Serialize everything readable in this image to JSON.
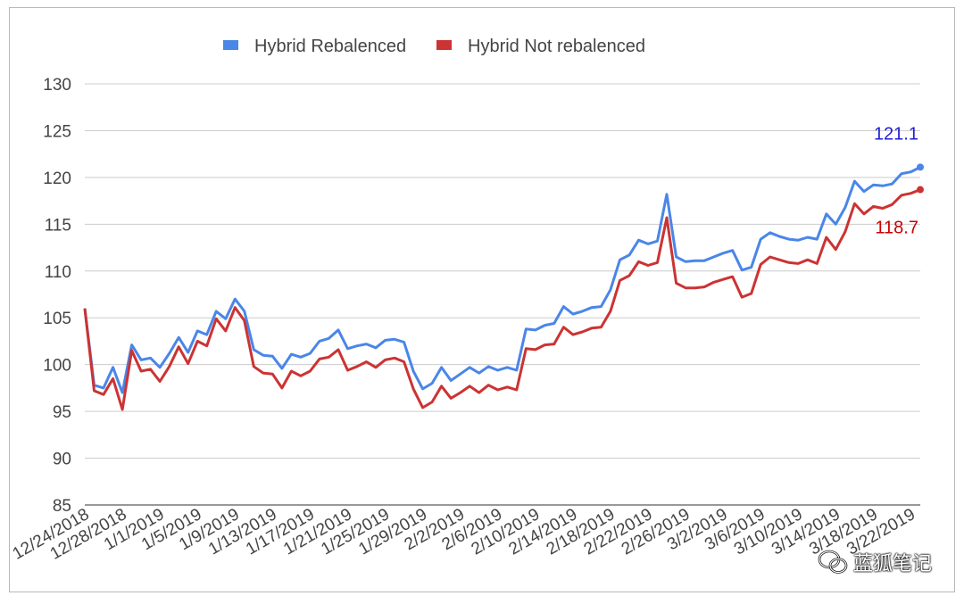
{
  "chart_data": {
    "type": "line",
    "title": "",
    "xlabel": "",
    "ylabel": "",
    "ylim": [
      85,
      130
    ],
    "yticks": [
      85,
      90,
      95,
      100,
      105,
      110,
      115,
      120,
      125,
      130
    ],
    "grid": true,
    "legend_position": "top",
    "x_tick_labels": [
      "12/24/2018",
      "12/28/2018",
      "1/1/2019",
      "1/5/2019",
      "1/9/2019",
      "1/13/2019",
      "1/17/2019",
      "1/21/2019",
      "1/25/2019",
      "1/29/2019",
      "2/2/2019",
      "2/6/2019",
      "2/10/2019",
      "2/14/2019",
      "2/18/2019",
      "2/22/2019",
      "2/26/2019",
      "3/2/2019",
      "3/6/2019",
      "3/10/2019",
      "3/14/2019",
      "3/18/2019",
      "3/22/2019"
    ],
    "series": [
      {
        "name": "Hybrid Rebalenced",
        "color": "#4a86e8",
        "end_label": "121.1",
        "end_label_color": "#1f1fd6",
        "values": [
          106.0,
          97.8,
          97.5,
          99.7,
          97.0,
          102.1,
          100.5,
          100.7,
          99.7,
          101.2,
          102.9,
          101.3,
          103.6,
          103.2,
          105.7,
          104.9,
          107.0,
          105.7,
          101.6,
          101.0,
          100.9,
          99.6,
          101.1,
          100.8,
          101.2,
          102.5,
          102.8,
          103.7,
          101.7,
          102.0,
          102.2,
          101.8,
          102.6,
          102.7,
          102.4,
          99.3,
          97.4,
          98.0,
          99.7,
          98.3,
          99.0,
          99.7,
          99.1,
          99.8,
          99.4,
          99.7,
          99.4,
          103.8,
          103.7,
          104.2,
          104.4,
          106.2,
          105.4,
          105.7,
          106.1,
          106.2,
          108.0,
          111.2,
          111.7,
          113.3,
          112.9,
          113.2,
          118.2,
          111.5,
          111.0,
          111.1,
          111.1,
          111.5,
          111.9,
          112.2,
          110.1,
          110.4,
          113.4,
          114.1,
          113.7,
          113.4,
          113.3,
          113.6,
          113.4,
          116.1,
          115.0,
          116.8,
          119.6,
          118.5,
          119.2,
          119.1,
          119.3,
          120.4,
          120.6,
          121.1
        ]
      },
      {
        "name": "Hybrid Not rebalenced",
        "color": "#cc3333",
        "end_label": "118.7",
        "end_label_color": "#cc0000",
        "values": [
          106.0,
          97.2,
          96.8,
          98.5,
          95.2,
          101.5,
          99.3,
          99.5,
          98.2,
          99.8,
          101.9,
          100.1,
          102.5,
          102.0,
          104.9,
          103.6,
          106.1,
          104.7,
          99.8,
          99.1,
          99.0,
          97.5,
          99.3,
          98.8,
          99.3,
          100.6,
          100.8,
          101.6,
          99.4,
          99.8,
          100.3,
          99.7,
          100.5,
          100.7,
          100.3,
          97.4,
          95.4,
          96.0,
          97.7,
          96.4,
          97.0,
          97.7,
          97.0,
          97.8,
          97.3,
          97.6,
          97.3,
          101.7,
          101.6,
          102.1,
          102.2,
          104.0,
          103.2,
          103.5,
          103.9,
          104.0,
          105.7,
          109.0,
          109.5,
          111.0,
          110.6,
          110.9,
          115.7,
          108.7,
          108.2,
          108.2,
          108.3,
          108.8,
          109.1,
          109.4,
          107.2,
          107.6,
          110.7,
          111.5,
          111.2,
          110.9,
          110.8,
          111.2,
          110.8,
          113.6,
          112.3,
          114.2,
          117.2,
          116.1,
          116.9,
          116.7,
          117.1,
          118.1,
          118.3,
          118.7
        ]
      }
    ]
  },
  "watermark": {
    "text": "蓝狐笔记",
    "icon": "wechat-icon"
  }
}
